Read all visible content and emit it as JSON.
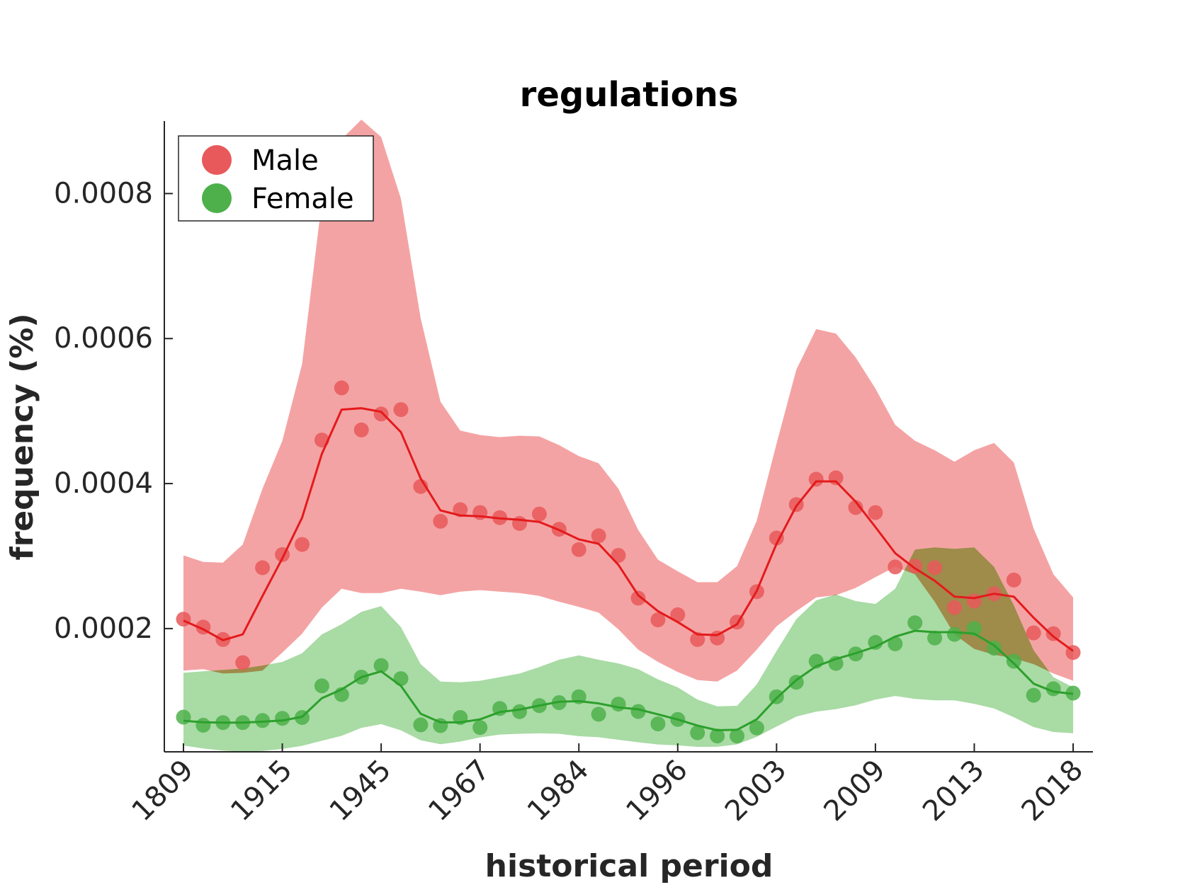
{
  "chart_data": {
    "type": "line",
    "title": "regulations",
    "xlabel": "historical period",
    "ylabel": "frequency (%)",
    "x_tick_labels": [
      "1809",
      "1915",
      "1945",
      "1967",
      "1984",
      "1996",
      "2003",
      "2009",
      "2013",
      "2018"
    ],
    "x_index_range": [
      0,
      45
    ],
    "y_ticks": [
      0.0002,
      0.0004,
      0.0006,
      0.0008
    ],
    "y_tick_labels": [
      "0.0002",
      "0.0004",
      "0.0006",
      "0.0008"
    ],
    "ylim": [
      3e-05,
      0.0009
    ],
    "grid": false,
    "legend_position": "top-left",
    "colors": {
      "male": "#e41a1c",
      "male_point": "#e8595b",
      "male_band": "#f4a3a4",
      "female": "#2ca02c",
      "female_point": "#4db04a",
      "female_band": "#a9dba5",
      "overlap": "#9e7d3a"
    },
    "series": [
      {
        "name": "Male",
        "key": "male",
        "points": [
          0.000213,
          0.000202,
          0.000185,
          0.000153,
          0.000284,
          0.000302,
          0.000316,
          0.00046,
          0.000532,
          0.000474,
          0.000496,
          0.000502,
          0.000396,
          0.000348,
          0.000364,
          0.00036,
          0.000353,
          0.000345,
          0.000358,
          0.000337,
          0.000309,
          0.000328,
          0.000301,
          0.000242,
          0.000212,
          0.000219,
          0.000185,
          0.000187,
          0.000209,
          0.000251,
          0.000325,
          0.000371,
          0.000406,
          0.000408,
          0.000367,
          0.00036,
          0.000285,
          0.000286,
          0.000284,
          0.000229,
          0.000238,
          0.000248,
          0.000267,
          0.000194,
          0.000193,
          0.000167
        ],
        "trend": [
          0.000211,
          0.000199,
          0.000184,
          0.000192,
          0.000245,
          0.000297,
          0.000353,
          0.000441,
          0.000502,
          0.000504,
          0.000499,
          0.000471,
          0.000407,
          0.000363,
          0.000356,
          0.000355,
          0.000352,
          0.00035,
          0.000347,
          0.000336,
          0.000323,
          0.000317,
          0.000288,
          0.000246,
          0.000224,
          0.000209,
          0.000192,
          0.000191,
          0.000206,
          0.000252,
          0.000317,
          0.000369,
          0.000403,
          0.000403,
          0.000375,
          0.00034,
          0.000304,
          0.000283,
          0.000266,
          0.000244,
          0.000242,
          0.000248,
          0.000244,
          0.000215,
          0.000189,
          0.000169
        ],
        "band_upper": [
          0.000301,
          0.000292,
          0.000291,
          0.000316,
          0.000393,
          0.000459,
          0.000565,
          0.00079,
          0.000875,
          0.000902,
          0.000878,
          0.000793,
          0.000628,
          0.000513,
          0.000473,
          0.000467,
          0.000464,
          0.000466,
          0.000465,
          0.000453,
          0.000438,
          0.000428,
          0.000393,
          0.000336,
          0.000295,
          0.000279,
          0.000264,
          0.000264,
          0.000286,
          0.000349,
          0.000455,
          0.000557,
          0.000613,
          0.000607,
          0.000574,
          0.000531,
          0.000481,
          0.000459,
          0.000446,
          0.00043,
          0.000446,
          0.000456,
          0.000429,
          0.000338,
          0.000275,
          0.000243
        ],
        "band_lower": [
          0.000142,
          0.000144,
          0.000138,
          0.000139,
          0.000142,
          0.000167,
          0.000193,
          0.000229,
          0.000255,
          0.000249,
          0.000249,
          0.000255,
          0.000251,
          0.000246,
          0.000251,
          0.000253,
          0.000251,
          0.000249,
          0.000245,
          0.000237,
          0.00023,
          0.000222,
          0.000199,
          0.000171,
          0.000154,
          0.00014,
          0.000129,
          0.000127,
          0.000142,
          0.000171,
          0.000203,
          0.000224,
          0.000243,
          0.000246,
          0.000256,
          0.000271,
          0.000285,
          0.000275,
          0.000237,
          0.000192,
          0.000172,
          0.000164,
          0.000159,
          0.000151,
          0.000138,
          0.000128
        ]
      },
      {
        "name": "Female",
        "key": "female",
        "points": [
          7.78e-05,
          6.67e-05,
          7.03e-05,
          7.03e-05,
          7.32e-05,
          7.62e-05,
          7.74e-05,
          0.000121,
          0.000109,
          0.000133,
          0.000149,
          0.000131,
          6.72e-05,
          6.62e-05,
          7.74e-05,
          6.36e-05,
          8.98e-05,
          8.55e-05,
          9.38e-05,
          9.79e-05,
          0.000106,
          8.18e-05,
          9.58e-05,
          8.57e-05,
          6.86e-05,
          7.47e-05,
          5.63e-05,
          5.19e-05,
          5.19e-05,
          6.3e-05,
          0.000106,
          0.000126,
          0.000155,
          0.000152,
          0.000165,
          0.000181,
          0.000179,
          0.000208,
          0.000187,
          0.000192,
          0.0002,
          0.000173,
          0.000155,
          0.000108,
          0.000117,
          0.000111
        ],
        "trend": [
          7.29e-05,
          7.08e-05,
          7.03e-05,
          7.03e-05,
          7.16e-05,
          7.32e-05,
          7.83e-05,
          0.000104,
          0.000116,
          0.000133,
          0.000141,
          0.000121,
          8.24e-05,
          7.07e-05,
          7.06e-05,
          7.48e-05,
          8.49e-05,
          8.82e-05,
          9.39e-05,
          9.9e-05,
          9.99e-05,
          9.68e-05,
          9.13e-05,
          8.87e-05,
          8.17e-05,
          7.46e-05,
          6.62e-05,
          5.98e-05,
          6.04e-05,
          7.49e-05,
          0.000104,
          0.000129,
          0.000148,
          0.000158,
          0.000166,
          0.000175,
          0.000189,
          0.000197,
          0.000195,
          0.000195,
          0.000193,
          0.000177,
          0.000152,
          0.000124,
          0.000113,
          0.00011
        ],
        "band_upper": [
          0.000139,
          0.000141,
          0.000143,
          0.000145,
          0.000149,
          0.000154,
          0.000166,
          0.000192,
          0.000206,
          0.000223,
          0.000231,
          0.000202,
          0.000151,
          0.000127,
          0.000126,
          0.000128,
          0.000133,
          0.000138,
          0.000147,
          0.000157,
          0.000163,
          0.000157,
          0.000152,
          0.000144,
          0.00013,
          0.000119,
          0.000102,
          9.28e-05,
          9.35e-05,
          0.000123,
          0.000169,
          0.000213,
          0.000239,
          0.000247,
          0.000238,
          0.000234,
          0.000255,
          0.000309,
          0.000312,
          0.00031,
          0.000312,
          0.000285,
          0.000232,
          0.00017,
          0.000133,
          0.000119
        ],
        "band_lower": [
          3.87e-05,
          3.46e-05,
          3.18e-05,
          3.03e-05,
          3.12e-05,
          3.39e-05,
          3.83e-05,
          4.52e-05,
          5.21e-05,
          6.31e-05,
          6.82e-05,
          5.97e-05,
          4.59e-05,
          4.04e-05,
          4.42e-05,
          4.99e-05,
          5.38e-05,
          5.49e-05,
          5.55e-05,
          5.49e-05,
          5.16e-05,
          5.01e-05,
          4.66e-05,
          4.32e-05,
          4.02e-05,
          3.89e-05,
          3.68e-05,
          3.69e-05,
          4.03e-05,
          5.06e-05,
          6.49e-05,
          7.85e-05,
          8.55e-05,
          8.89e-05,
          9.42e-05,
          0.000102,
          0.000107,
          0.000103,
          0.000101,
          0.000101,
          9.61e-05,
          8.98e-05,
          7.77e-05,
          6.42e-05,
          5.73e-05,
          5.56e-05
        ]
      }
    ]
  }
}
